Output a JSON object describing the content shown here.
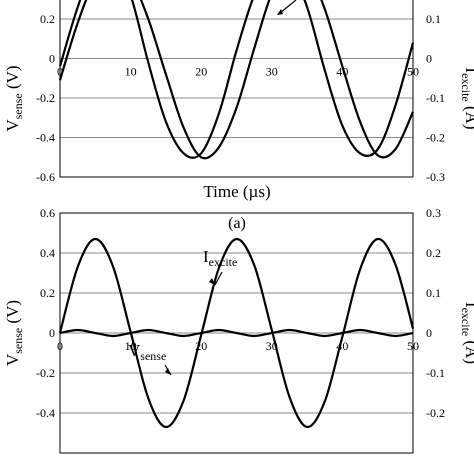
{
  "chart_data": [
    {
      "type": "line",
      "panel": "a",
      "xlabel": "Time (µs)",
      "x_ticks": [
        "0",
        "10",
        "20",
        "30",
        "40",
        "50"
      ],
      "xlim": [
        0,
        50
      ],
      "ylabel_left": "V_sense (V)",
      "ylabel_left_main": "V",
      "ylabel_left_sub": "sense",
      "ylabel_left_unit": " (V)",
      "ylabel_right": "I_excite (A)",
      "ylabel_right_main": "I",
      "ylabel_right_sub": "excite",
      "ylabel_right_unit": " (A)",
      "ylim_left": [
        -0.6,
        0.6
      ],
      "ylim_right": [
        -0.3,
        0.3
      ],
      "y_ticks_left": [
        "0.2",
        "0",
        "-0.2",
        "-0.4",
        "-0.6"
      ],
      "y_ticks_right": [
        "0.1",
        "0",
        "-0.1",
        "-0.2",
        "-0.3"
      ],
      "grid": true,
      "series": [
        {
          "axis": "left",
          "x": [
            0,
            2.5,
            5,
            7.5,
            10,
            12.5,
            15,
            17.5,
            20,
            22.5,
            25,
            27.5,
            30,
            32.5,
            35,
            37.5,
            40,
            42.5,
            45,
            47.5,
            50
          ],
          "y": [
            -0.11,
            0.18,
            0.4,
            0.49,
            0.41,
            0.2,
            -0.08,
            -0.35,
            -0.5,
            -0.45,
            -0.25,
            0.05,
            0.33,
            0.48,
            0.45,
            0.25,
            -0.04,
            -0.32,
            -0.49,
            -0.46,
            -0.27
          ]
        },
        {
          "axis": "right",
          "x": [
            0,
            2.5,
            5,
            7.5,
            10,
            12.5,
            15,
            17.5,
            20,
            22.5,
            25,
            27.5,
            30,
            32.5,
            35,
            37.5,
            40,
            42.5,
            45,
            47.5,
            50
          ],
          "y": [
            -0.02,
            0.13,
            0.24,
            0.25,
            0.16,
            -0.01,
            -0.16,
            -0.24,
            -0.24,
            -0.14,
            0.02,
            0.16,
            0.24,
            0.23,
            0.13,
            -0.03,
            -0.17,
            -0.24,
            -0.23,
            -0.12,
            0.04
          ]
        }
      ]
    },
    {
      "type": "line",
      "panel": "b",
      "xlabel": "",
      "x_ticks": [
        "0",
        "10",
        "20",
        "30",
        "40",
        "50"
      ],
      "xlim": [
        0,
        50
      ],
      "ylabel_left": "V_sense (V)",
      "ylabel_left_main": "V",
      "ylabel_left_sub": "sense",
      "ylabel_left_unit": " (V)",
      "ylabel_right": "I_excite (A)",
      "ylabel_right_main": "I",
      "ylabel_right_sub": "excite",
      "ylabel_right_unit": " (A)",
      "ylim_left": [
        -0.6,
        0.6
      ],
      "ylim_right": [
        -0.3,
        0.3
      ],
      "y_ticks_left": [
        "0.6",
        "0.4",
        "0.2",
        "0",
        "-0.2",
        "-0.4"
      ],
      "y_ticks_right": [
        "0.3",
        "0.2",
        "0.1",
        "0",
        "-0.1",
        "-0.2"
      ],
      "grid": true,
      "annotations": [
        {
          "main": "I",
          "sub": "excite"
        },
        {
          "main": "V",
          "sub": "sense"
        }
      ],
      "series": [
        {
          "name": "I_excite",
          "axis": "right",
          "x": [
            0,
            2.5,
            5,
            7.5,
            10,
            12.5,
            15,
            17.5,
            20,
            22.5,
            25,
            27.5,
            30,
            32.5,
            35,
            37.5,
            40,
            42.5,
            45,
            47.5,
            50
          ],
          "y": [
            0,
            0.165,
            0.235,
            0.167,
            0.003,
            -0.163,
            -0.235,
            -0.169,
            -0.005,
            0.162,
            0.235,
            0.17,
            0.007,
            -0.16,
            -0.235,
            -0.171,
            -0.009,
            0.159,
            0.235,
            0.172,
            0.011
          ]
        },
        {
          "name": "V_sense",
          "axis": "left",
          "x": [
            0,
            2.5,
            5,
            7.5,
            10,
            12.5,
            15,
            17.5,
            20,
            22.5,
            25,
            27.5,
            30,
            32.5,
            35,
            37.5,
            40,
            42.5,
            45,
            47.5,
            50
          ],
          "y": [
            0,
            0.015,
            0.0,
            -0.015,
            0,
            0.015,
            0.0,
            -0.015,
            0,
            0.015,
            0.0,
            -0.015,
            0,
            0.015,
            0.0,
            -0.015,
            0,
            0.015,
            0.0,
            -0.015,
            0
          ]
        }
      ]
    }
  ],
  "captions": {
    "panel_a": "(a)"
  }
}
